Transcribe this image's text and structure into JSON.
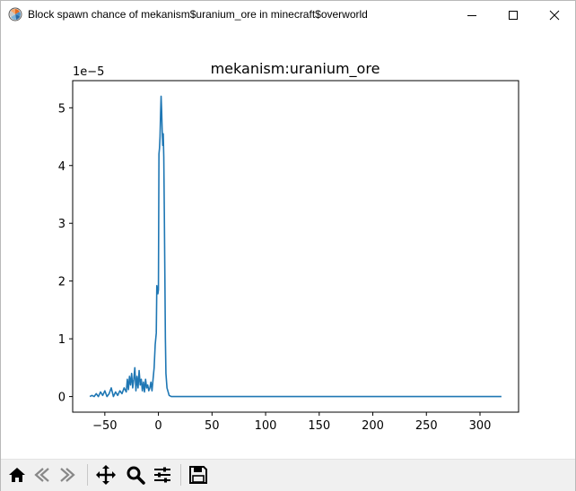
{
  "window": {
    "title": "Block spawn chance of mekanism$uranium_ore in minecraft$overworld",
    "controls": [
      "minimize",
      "maximize",
      "close"
    ]
  },
  "toolbar": {
    "buttons": [
      {
        "icon": "home-icon"
      },
      {
        "icon": "back-arrow-icon"
      },
      {
        "icon": "forward-arrow-icon"
      },
      {
        "icon": "pan-icon"
      },
      {
        "icon": "zoom-icon"
      },
      {
        "icon": "configure-subplots-icon"
      },
      {
        "icon": "save-icon"
      }
    ]
  },
  "chart_data": {
    "type": "line",
    "title": "mekanism:uranium_ore",
    "xlabel": "",
    "ylabel": "",
    "offset_text": "1e−5",
    "xlim": [
      -80,
      336
    ],
    "ylim": [
      -0.27,
      5.47
    ],
    "xticks": [
      -50,
      0,
      50,
      100,
      150,
      200,
      250,
      300
    ],
    "xtick_labels": [
      "−50",
      "0",
      "50",
      "100",
      "150",
      "200",
      "250",
      "300"
    ],
    "yticks": [
      0,
      1,
      2,
      3,
      4,
      5
    ],
    "ytick_labels": [
      "0",
      "1",
      "2",
      "3",
      "4",
      "5"
    ],
    "grid": false,
    "line_color": "#1f77b4",
    "series": [
      {
        "points": [
          [
            -64,
            0.0
          ],
          [
            -62,
            0.02
          ],
          [
            -60,
            0.0
          ],
          [
            -58,
            0.05
          ],
          [
            -56,
            0.0
          ],
          [
            -54,
            0.08
          ],
          [
            -52,
            0.02
          ],
          [
            -50,
            0.1
          ],
          [
            -48,
            0.0
          ],
          [
            -46,
            0.05
          ],
          [
            -44,
            0.15
          ],
          [
            -42,
            0.0
          ],
          [
            -40,
            0.08
          ],
          [
            -38,
            0.02
          ],
          [
            -36,
            0.1
          ],
          [
            -34,
            0.05
          ],
          [
            -32,
            0.15
          ],
          [
            -30,
            0.08
          ],
          [
            -29,
            0.3
          ],
          [
            -28,
            0.12
          ],
          [
            -27,
            0.35
          ],
          [
            -26,
            0.2
          ],
          [
            -25,
            0.4
          ],
          [
            -24,
            0.15
          ],
          [
            -23,
            0.3
          ],
          [
            -22,
            0.5
          ],
          [
            -21,
            0.1
          ],
          [
            -20,
            0.35
          ],
          [
            -19,
            0.15
          ],
          [
            -18,
            0.45
          ],
          [
            -17,
            0.2
          ],
          [
            -16,
            0.3
          ],
          [
            -15,
            0.1
          ],
          [
            -14,
            0.25
          ],
          [
            -13,
            0.08
          ],
          [
            -12,
            0.3
          ],
          [
            -11,
            0.15
          ],
          [
            -10,
            0.2
          ],
          [
            -9,
            0.1
          ],
          [
            -8,
            0.15
          ],
          [
            -7,
            0.25
          ],
          [
            -6,
            0.1
          ],
          [
            -5,
            0.3
          ],
          [
            -4,
            0.5
          ],
          [
            -3,
            0.9
          ],
          [
            -2,
            1.1
          ],
          [
            -1.5,
            1.92
          ],
          [
            -1,
            1.85
          ],
          [
            -0.5,
            1.78
          ],
          [
            0,
            1.85
          ],
          [
            0.5,
            4.2
          ],
          [
            1,
            4.3
          ],
          [
            1.5,
            4.5
          ],
          [
            2,
            4.9
          ],
          [
            2.5,
            5.2
          ],
          [
            3,
            4.95
          ],
          [
            3.5,
            4.6
          ],
          [
            4,
            4.35
          ],
          [
            4.5,
            4.55
          ],
          [
            5,
            4.15
          ],
          [
            5.5,
            3.2
          ],
          [
            6,
            2.1
          ],
          [
            6.5,
            1.0
          ],
          [
            7,
            0.4
          ],
          [
            8,
            0.15
          ],
          [
            10,
            0.02
          ],
          [
            12,
            0.0
          ],
          [
            50,
            0.0
          ],
          [
            100,
            0.0
          ],
          [
            200,
            0.0
          ],
          [
            300,
            0.0
          ],
          [
            320,
            0.0
          ]
        ]
      }
    ]
  }
}
